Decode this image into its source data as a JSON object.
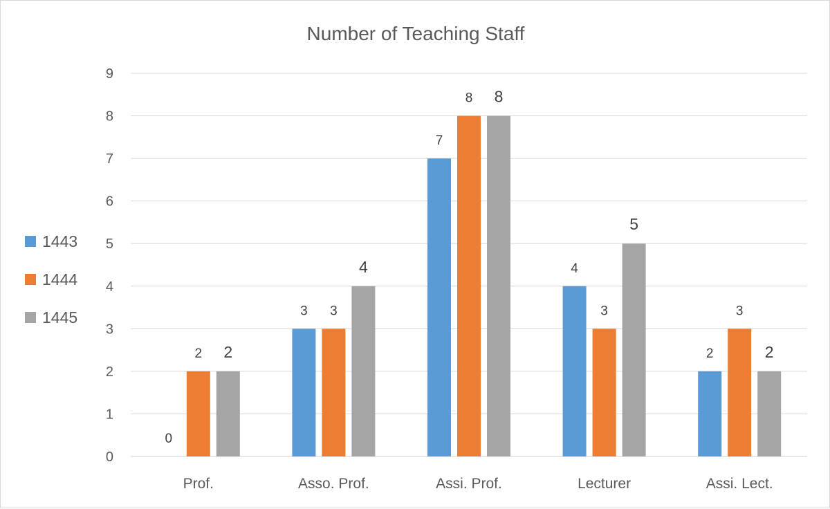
{
  "chart_data": {
    "type": "bar",
    "title": "Number of Teaching Staff",
    "xlabel": "",
    "ylabel": "",
    "categories": [
      "Prof.",
      "Asso. Prof.",
      "Assi. Prof.",
      "Lecturer",
      "Assi. Lect."
    ],
    "series": [
      {
        "name": "1443",
        "color": "#5b9bd5",
        "values": [
          0,
          3,
          7,
          4,
          2
        ]
      },
      {
        "name": "1444",
        "color": "#ed7d31",
        "values": [
          2,
          3,
          8,
          3,
          3
        ]
      },
      {
        "name": "1445",
        "color": "#a5a5a5",
        "values": [
          2,
          4,
          8,
          5,
          2
        ]
      }
    ],
    "ylim": [
      0,
      9
    ],
    "yticks": [
      0,
      1,
      2,
      3,
      4,
      5,
      6,
      7,
      8,
      9
    ],
    "grid": true,
    "legend_position": "left",
    "data_labels": true
  }
}
